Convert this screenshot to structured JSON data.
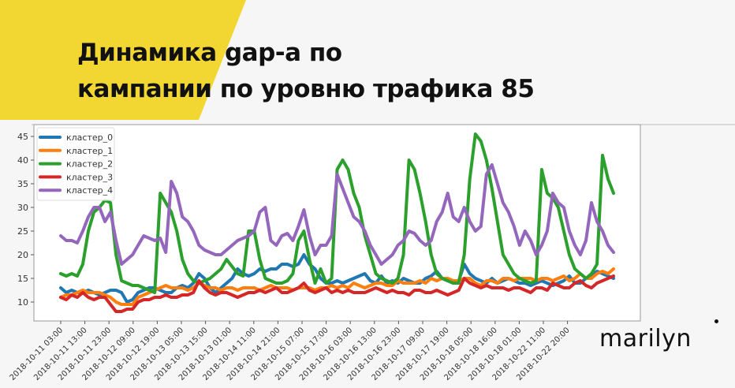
{
  "slide": {
    "title_line1": "Динамика gap-а по",
    "title_line2": "кампании по уровню трафика 85",
    "logo": "marilyn",
    "accent_color": "#f2d733"
  },
  "chart_data": {
    "type": "line",
    "title": "",
    "xlabel": "",
    "ylabel": "",
    "ylim": [
      6,
      47.5
    ],
    "yticks": [
      10,
      15,
      20,
      25,
      30,
      35,
      40,
      45
    ],
    "grid": false,
    "legend_position": "upper left",
    "x_tick_labels": [
      "2018-10-11 03:00",
      "2018-10-11 13:00",
      "2018-10-11 23:00",
      "2018-10-12 09:00",
      "2018-10-12 19:00",
      "2018-10-13 05:00",
      "2018-10-13 15:00",
      "2018-10-13 01:00",
      "2018-10-14 11:00",
      "2018-10-14 21:00",
      "2018-10-15 07:00",
      "2018-10-15 17:00",
      "2018-10-16 03:00",
      "2018-10-16 13:00",
      "2018-10-16 23:00",
      "2018-10-17 09:00",
      "2018-10-17 19:00",
      "2018-10-18 05:00",
      "2018-10-18 16:00",
      "2018-10-18 01:00",
      "2018-10-22 11:00",
      "2018-10-22 20:00"
    ],
    "series": [
      {
        "name": "кластер_0",
        "color": "#1f77b4",
        "values": [
          13,
          12,
          12.5,
          12,
          12,
          12.5,
          12,
          11.5,
          12,
          12.5,
          12.5,
          12,
          10,
          10.5,
          12,
          12.5,
          13,
          13,
          12.5,
          12,
          12,
          13,
          13.5,
          13,
          14,
          16,
          15,
          13,
          12,
          13,
          14,
          15,
          17,
          16,
          15.5,
          16,
          17,
          16.5,
          17,
          17,
          18,
          18,
          17.5,
          18,
          20,
          18,
          17,
          15,
          14,
          14,
          14.5,
          14,
          14.5,
          15,
          15.5,
          16,
          14.5,
          14,
          15.5,
          14,
          14.5,
          14,
          15,
          14.5,
          14,
          14,
          15,
          15.5,
          16.5,
          15,
          14.5,
          14,
          14.5,
          18,
          16,
          15,
          14.5,
          14,
          15,
          14,
          14.5,
          15,
          14.5,
          14,
          14,
          13.5,
          14,
          14.5,
          14,
          13.5,
          14,
          14.5,
          15.5,
          14,
          14,
          15,
          15.5,
          16.5,
          16,
          15.5,
          15
        ]
      },
      {
        "name": "кластер_1",
        "color": "#ff7f0e",
        "values": [
          11,
          11.5,
          11.5,
          12,
          12.5,
          12,
          12,
          12,
          11.5,
          11,
          10,
          9.5,
          9.5,
          9.5,
          11,
          11.5,
          12,
          12.5,
          13,
          13.5,
          13,
          13,
          13,
          12.5,
          13,
          14,
          13.5,
          13,
          13,
          12.5,
          13,
          13,
          12.5,
          13,
          13,
          13,
          12.5,
          13,
          13.5,
          13,
          13,
          13,
          12.5,
          13,
          13,
          13,
          12.5,
          13,
          13,
          13.5,
          13,
          13.5,
          13,
          14,
          13.5,
          13,
          13.5,
          14,
          14,
          13.5,
          13.5,
          14.5,
          14,
          14,
          14,
          14.5,
          14,
          15,
          14.5,
          15,
          15,
          14.5,
          14.5,
          15,
          15,
          14,
          13.5,
          14.5,
          14.5,
          14,
          15,
          15,
          14.5,
          15,
          15,
          15,
          14.5,
          15,
          15,
          14.5,
          15,
          15.5,
          14.5,
          15,
          16,
          15,
          15,
          16,
          16.5,
          16,
          17
        ]
      },
      {
        "name": "кластер_2",
        "color": "#2ca02c",
        "values": [
          16,
          15.5,
          16,
          15.5,
          18,
          25,
          29,
          30,
          31.5,
          31,
          20,
          14.5,
          14,
          13.5,
          13.5,
          13,
          12.5,
          12,
          33,
          31,
          29,
          25,
          19,
          16,
          14.5,
          14,
          14.5,
          15,
          16,
          17,
          19,
          17.5,
          16,
          15.5,
          25,
          25,
          19,
          15,
          14.5,
          14,
          14,
          14.5,
          16,
          23,
          25,
          19,
          14,
          17,
          14,
          15,
          38,
          40,
          38,
          33,
          30,
          24,
          20,
          16,
          15,
          14.5,
          14,
          15,
          20,
          40,
          38,
          33,
          27,
          20,
          16,
          15,
          14.5,
          14,
          14,
          20,
          36,
          45.5,
          44,
          40,
          34,
          27,
          20,
          18,
          16,
          15,
          14.5,
          14,
          14.5,
          38,
          33,
          32,
          30,
          25,
          20,
          17,
          16,
          15,
          16,
          18,
          41,
          36,
          33
        ]
      },
      {
        "name": "кластер_3",
        "color": "#d62728",
        "values": [
          11,
          10.5,
          11.5,
          11,
          12,
          11,
          10.5,
          11,
          11,
          9.5,
          8,
          8,
          8.5,
          8.5,
          10,
          10.5,
          10.5,
          11,
          11,
          11.5,
          11,
          11,
          11.5,
          11.5,
          12,
          14.5,
          13,
          12,
          11.5,
          12,
          12,
          11.5,
          11,
          11.5,
          12,
          12,
          12.5,
          12,
          12.5,
          13,
          12,
          12,
          12.5,
          13,
          14,
          12.5,
          12,
          12.5,
          13,
          12,
          12.5,
          12,
          12.5,
          12,
          12,
          12,
          12.5,
          13,
          12.5,
          12,
          12.5,
          12,
          12,
          11.5,
          12.5,
          12.5,
          12,
          12,
          12.5,
          12,
          11.5,
          12,
          12.5,
          15,
          14,
          13.5,
          13,
          13.5,
          13,
          13,
          13,
          12.5,
          13,
          13,
          12.5,
          12,
          13,
          13,
          12.5,
          14,
          13.5,
          13,
          13,
          14,
          14.5,
          13.5,
          13,
          14,
          14.5,
          15,
          15.5
        ]
      },
      {
        "name": "кластер_4",
        "color": "#9467bd",
        "values": [
          24,
          23,
          23,
          22.5,
          25,
          28,
          30,
          30,
          27,
          29,
          23,
          18,
          19,
          20,
          22,
          24,
          23.5,
          23,
          23.5,
          20.5,
          35.5,
          33,
          28,
          27,
          25,
          22,
          21,
          20.5,
          20,
          20,
          21,
          22,
          23,
          23.5,
          24,
          25,
          29,
          30,
          23,
          22,
          24,
          24.5,
          23,
          26,
          29.5,
          24,
          20,
          22,
          22,
          24,
          37,
          34,
          31,
          28,
          27,
          25,
          22,
          20,
          18,
          19,
          20,
          22,
          23,
          25,
          24.5,
          23,
          22,
          23,
          27,
          29,
          33,
          28,
          27,
          30,
          27,
          25,
          26,
          37,
          39,
          35,
          31,
          29,
          26,
          22,
          25,
          23,
          20,
          22,
          25,
          33,
          31,
          30,
          25,
          22,
          20,
          23,
          31,
          27,
          25,
          22,
          20.5
        ]
      }
    ]
  }
}
